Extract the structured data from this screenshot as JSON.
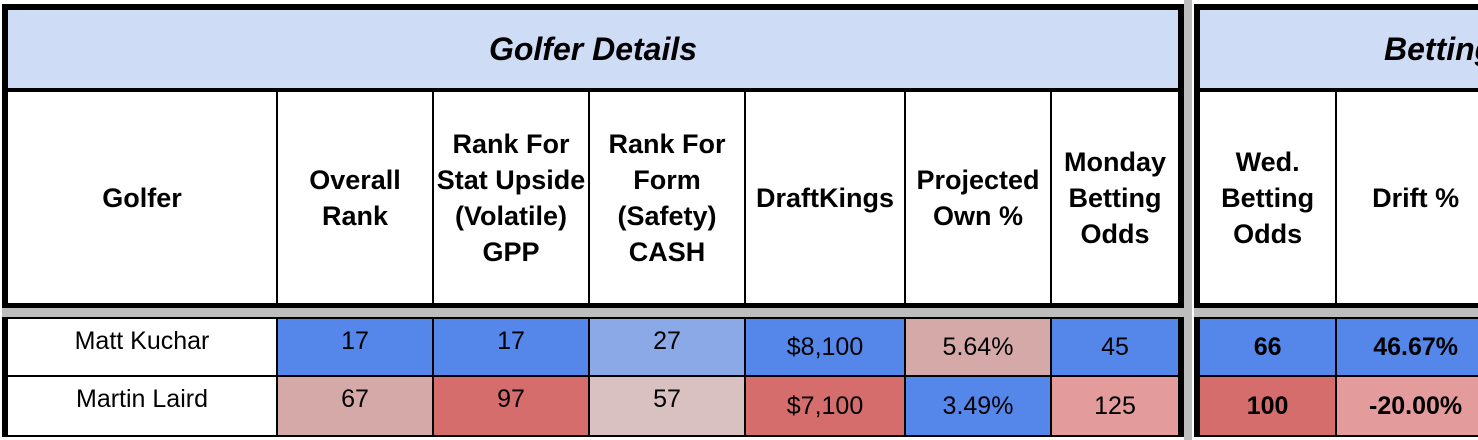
{
  "sections": {
    "left_title": "Golfer Details",
    "right_title": "Betting"
  },
  "headers": {
    "golfer": "Golfer",
    "overall_rank": "Overall Rank",
    "stat_upside": "Rank For Stat Upside (Volatile) GPP",
    "form_safety": "Rank For Form (Safety) CASH",
    "draftkings": "DraftKings",
    "projected_own": "Projected Own %",
    "monday_odds": "Monday Betting Odds",
    "wed_odds": "Wed. Betting Odds",
    "drift": "Drift %"
  },
  "rows": [
    {
      "golfer": "Matt Kuchar",
      "overall_rank": "17",
      "stat_upside": "17",
      "form_safety": "27",
      "draftkings": "$8,100",
      "projected_own": "5.64%",
      "monday_odds": "45",
      "wed_odds": "66",
      "drift": "46.67%"
    },
    {
      "golfer": "Martin Laird",
      "overall_rank": "67",
      "stat_upside": "97",
      "form_safety": "57",
      "draftkings": "$7,100",
      "projected_own": "3.49%",
      "monday_odds": "125",
      "wed_odds": "100",
      "drift": "-20.00%"
    }
  ],
  "colors": {
    "title_bg": "#cfdcf5",
    "blue": "#5587ea",
    "light_blue": "#8aa9e6",
    "pink_light": "#d6a9a9",
    "pink_pale": "#d9c1c2",
    "red": "#d46d6b",
    "salmon": "#e39b9b"
  }
}
